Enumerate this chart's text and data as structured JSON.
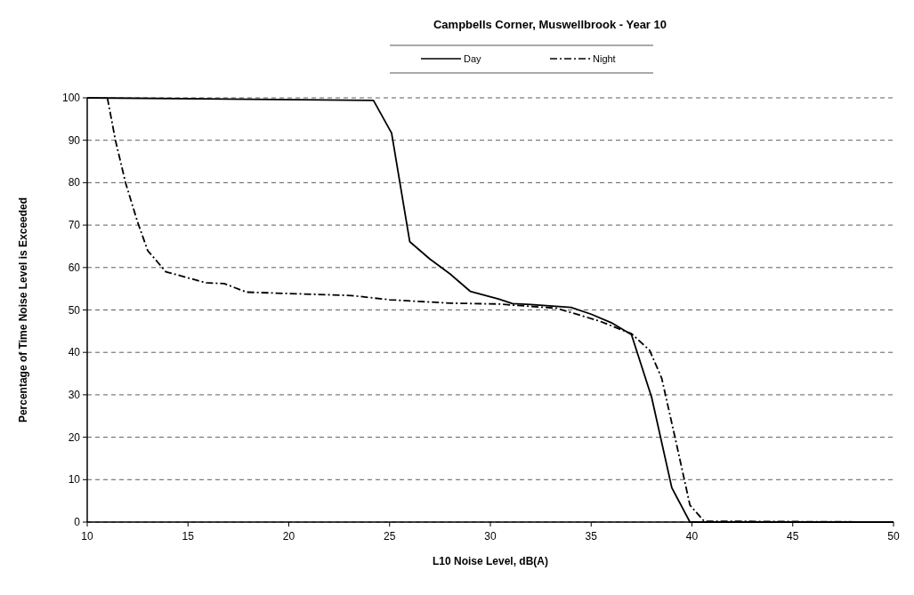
{
  "chart_data": {
    "type": "line",
    "title": "Campbells Corner, Muswellbrook - Year 10",
    "xlabel": "L10 Noise Level, dB(A)",
    "ylabel": "Percentage of Time Noise Level is Exceeded",
    "xlim": [
      10,
      50
    ],
    "xticks": [
      10,
      15,
      20,
      25,
      30,
      35,
      40,
      45,
      50
    ],
    "ylim": [
      0,
      100
    ],
    "yticks": [
      0,
      10,
      20,
      30,
      40,
      50,
      60,
      70,
      80,
      90,
      100
    ],
    "grid": "y",
    "legend": "top",
    "marker": "none",
    "series": [
      {
        "name": "Day",
        "color": "#000000",
        "line_style": "solid",
        "x": [
          10,
          24.2,
          25.1,
          26,
          27,
          28,
          29,
          30.4,
          31.1,
          32,
          34,
          35,
          36,
          37,
          38,
          39,
          39.9,
          50
        ],
        "values": [
          100,
          99.4,
          91.7,
          66.1,
          62,
          58.5,
          54.4,
          52.6,
          51.5,
          51.3,
          50.6,
          49,
          47,
          44.2,
          29.4,
          8.1,
          0,
          0
        ]
      },
      {
        "name": "Night",
        "color": "#000000",
        "line_style": "dashdot",
        "x": [
          11,
          11.4,
          11.9,
          12.5,
          13,
          13.9,
          15.9,
          16.8,
          17.9,
          23.1,
          25,
          28,
          30.4,
          33.3,
          35.4,
          37,
          37.9,
          38.5,
          39.2,
          39.9,
          40.6,
          50
        ],
        "values": [
          100,
          90,
          80,
          70.7,
          64,
          59,
          56.4,
          56.2,
          54.2,
          53.4,
          52.4,
          51.6,
          51.4,
          50.4,
          47.4,
          44.4,
          40.5,
          33.9,
          19.1,
          4,
          0.2,
          0
        ]
      }
    ]
  }
}
